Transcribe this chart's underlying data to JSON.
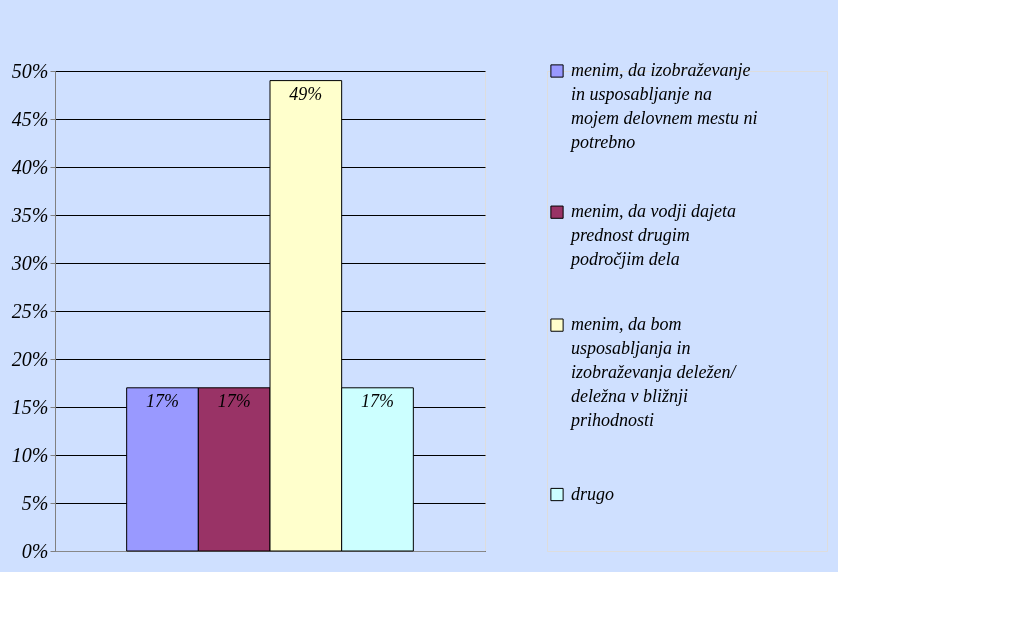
{
  "chart_data": {
    "type": "bar",
    "categories": [
      null
    ],
    "series": [
      {
        "name": "menim, da izobraževanje in usposabljanje na mojem delovnem mestu ni potrebno",
        "color": "#9999ff",
        "values": [
          17
        ],
        "value_labels": [
          "17%"
        ]
      },
      {
        "name": "menim, da vodji dajeta prednost drugim področjim dela",
        "color": "#993366",
        "values": [
          17
        ],
        "value_labels": [
          "17%"
        ]
      },
      {
        "name": "menim, da bom usposabljanja in izobraževanja deležen/ deležna v bližnji prihodnosti",
        "color": "#ffffcc",
        "values": [
          49
        ],
        "value_labels": [
          "49%"
        ]
      },
      {
        "name": "drugo",
        "color": "#ccffff",
        "values": [
          17
        ],
        "value_labels": [
          "17%"
        ]
      }
    ],
    "ylim": [
      0,
      50
    ],
    "yticks": [
      {
        "value": 0,
        "label": "0%"
      },
      {
        "value": 5,
        "label": "5%"
      },
      {
        "value": 10,
        "label": "10%"
      },
      {
        "value": 15,
        "label": "15%"
      },
      {
        "value": 20,
        "label": "20%"
      },
      {
        "value": 25,
        "label": "25%"
      },
      {
        "value": 30,
        "label": "30%"
      },
      {
        "value": 35,
        "label": "35%"
      },
      {
        "value": 40,
        "label": "40%"
      },
      {
        "value": 45,
        "label": "45%"
      },
      {
        "value": 50,
        "label": "50%"
      }
    ],
    "grid": "y",
    "legend": "right"
  }
}
